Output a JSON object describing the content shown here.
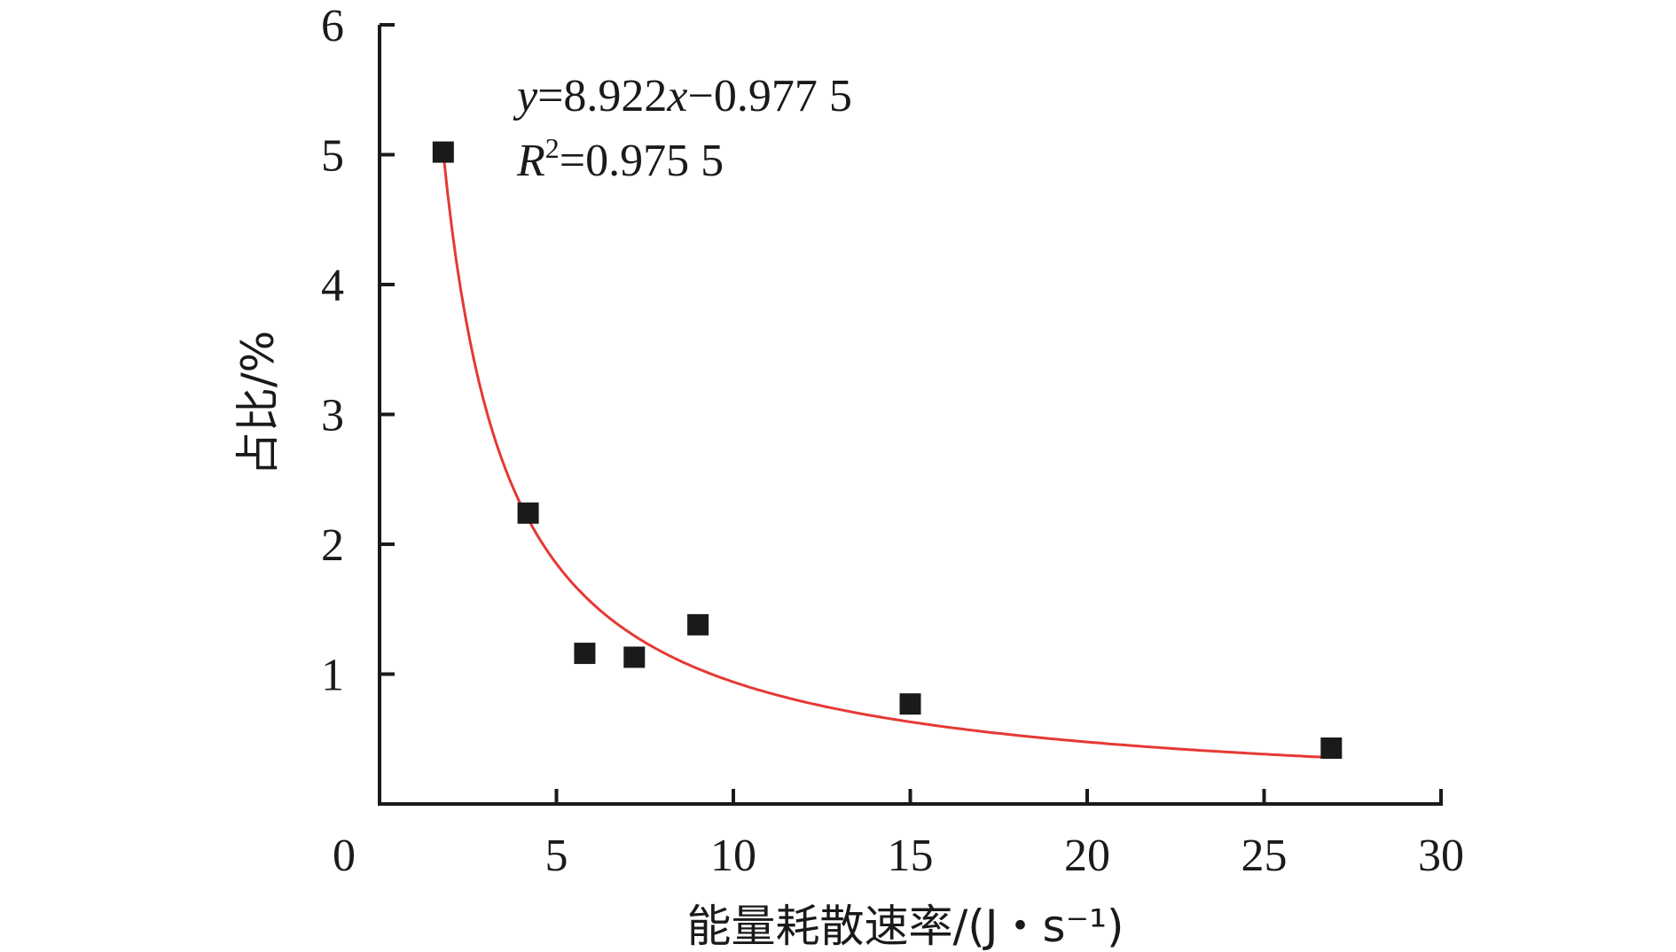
{
  "chart_data": {
    "type": "scatter",
    "xlabel": "能量耗散速率/(J・s⁻¹)",
    "ylabel": "占比/%",
    "xlim": [
      0,
      30
    ],
    "ylim": [
      0,
      6
    ],
    "x_ticks": [
      "0",
      "5",
      "10",
      "15",
      "20",
      "25",
      "30"
    ],
    "y_ticks": [
      "1",
      "2",
      "3",
      "4",
      "5",
      "6"
    ],
    "grid": false,
    "points": [
      {
        "x": 1.8,
        "y": 5.02
      },
      {
        "x": 4.2,
        "y": 2.24
      },
      {
        "x": 5.8,
        "y": 1.16
      },
      {
        "x": 7.2,
        "y": 1.13
      },
      {
        "x": 9.0,
        "y": 1.38
      },
      {
        "x": 15.0,
        "y": 0.77
      },
      {
        "x": 26.9,
        "y": 0.43
      }
    ],
    "fit": {
      "a": 8.922,
      "b": -0.9775,
      "x_range": [
        1.8,
        26.9
      ],
      "color": "#e53935"
    },
    "marker_color": "#1a1a1a",
    "equation": {
      "y_var": "y",
      "eq_rest": "=8.922",
      "x_var": "x",
      "eq_tail": "−0.977 5",
      "r_var": "R",
      "r_sup": "2",
      "r_rest": "=0.975 5"
    }
  }
}
